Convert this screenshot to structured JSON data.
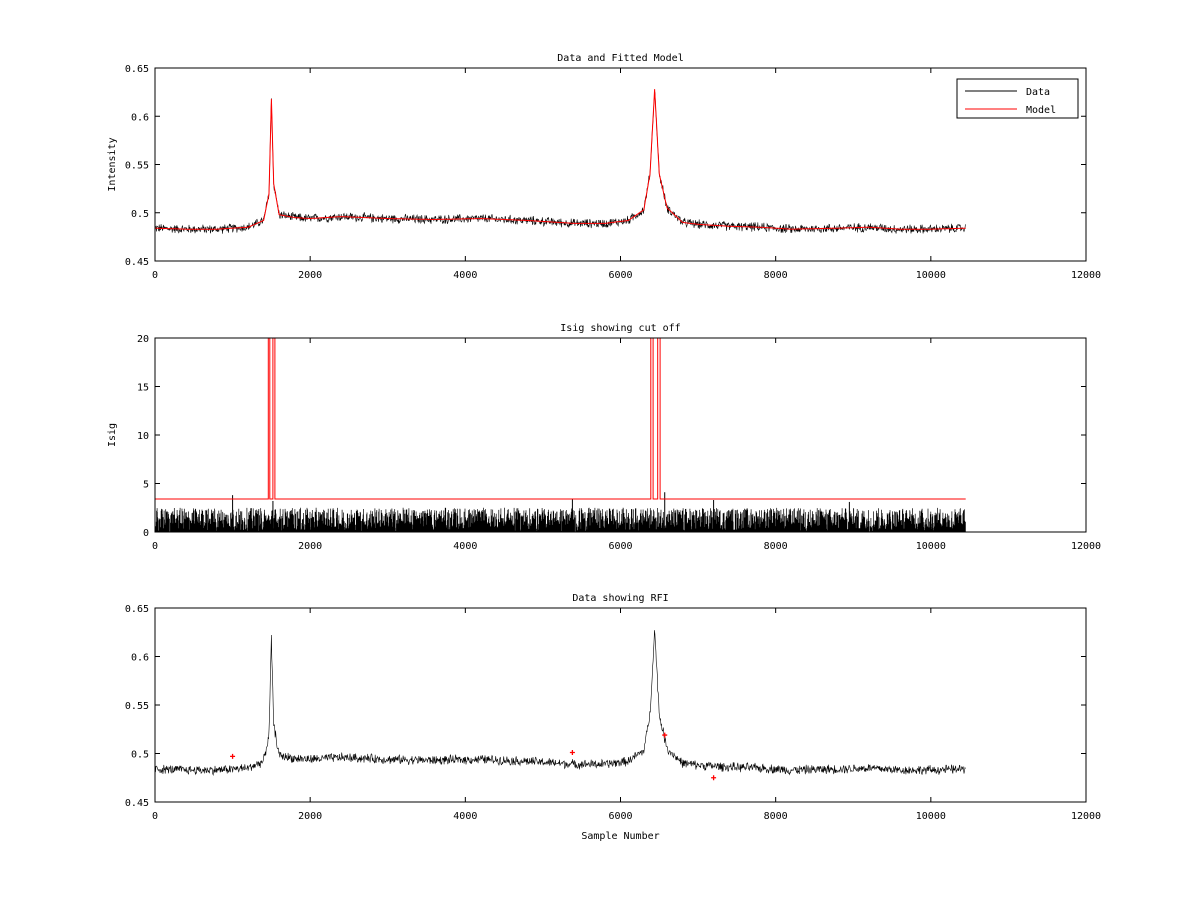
{
  "chart_data": [
    {
      "type": "line",
      "title": "Data and Fitted Model",
      "xlabel": "",
      "ylabel": "Intensity",
      "xlim": [
        0,
        12000
      ],
      "ylim": [
        0.45,
        0.65
      ],
      "xticks": [
        "0",
        "2000",
        "4000",
        "6000",
        "8000",
        "10000",
        "12000"
      ],
      "yticks": [
        "0.45",
        "0.5",
        "0.55",
        "0.6",
        "0.65"
      ],
      "grid": false,
      "legend": {
        "placement": "top-right",
        "entries": [
          "Data",
          "Model"
        ]
      },
      "series": [
        {
          "name": "Data",
          "color": "#000000",
          "style": "noisy",
          "noise_amplitude": 0.004,
          "x": [
            0,
            400,
            800,
            1200,
            1400,
            1470,
            1500,
            1530,
            1600,
            1800,
            2000,
            2400,
            3000,
            3600,
            4200,
            4800,
            5400,
            5800,
            6100,
            6300,
            6380,
            6440,
            6500,
            6600,
            6800,
            7000,
            7400,
            7800,
            8200,
            8800,
            9200,
            9600,
            10000,
            10450
          ],
          "y": [
            0.484,
            0.483,
            0.483,
            0.485,
            0.492,
            0.52,
            0.618,
            0.53,
            0.498,
            0.495,
            0.494,
            0.496,
            0.494,
            0.493,
            0.494,
            0.492,
            0.489,
            0.489,
            0.492,
            0.503,
            0.54,
            0.628,
            0.54,
            0.505,
            0.49,
            0.488,
            0.486,
            0.485,
            0.483,
            0.484,
            0.485,
            0.483,
            0.483,
            0.484
          ]
        },
        {
          "name": "Model",
          "color": "#ff0000",
          "style": "smooth",
          "x": [
            0,
            400,
            800,
            1200,
            1400,
            1470,
            1500,
            1530,
            1600,
            1800,
            2000,
            2400,
            3000,
            3600,
            4200,
            4800,
            5400,
            5800,
            6100,
            6300,
            6380,
            6440,
            6500,
            6600,
            6800,
            7000,
            7400,
            7800,
            8200,
            8800,
            9200,
            9600,
            10000,
            10450
          ],
          "y": [
            0.484,
            0.483,
            0.483,
            0.485,
            0.492,
            0.52,
            0.618,
            0.53,
            0.498,
            0.495,
            0.494,
            0.496,
            0.494,
            0.493,
            0.494,
            0.492,
            0.489,
            0.489,
            0.492,
            0.503,
            0.54,
            0.628,
            0.54,
            0.505,
            0.49,
            0.488,
            0.486,
            0.485,
            0.483,
            0.484,
            0.485,
            0.483,
            0.483,
            0.484
          ]
        }
      ]
    },
    {
      "type": "line",
      "title": "Isig showing cut off",
      "xlabel": "",
      "ylabel": "Isig",
      "xlim": [
        0,
        12000
      ],
      "ylim": [
        0,
        20
      ],
      "xticks": [
        "0",
        "2000",
        "4000",
        "6000",
        "8000",
        "10000",
        "12000"
      ],
      "yticks": [
        "0",
        "5",
        "10",
        "15",
        "20"
      ],
      "grid": false,
      "series": [
        {
          "color": "#000000",
          "style": "noise-floor",
          "x_range": [
            0,
            10450
          ],
          "typical_max": 2.5,
          "spikes": [
            [
              1000,
              3.8
            ],
            [
              1520,
              3.2
            ],
            [
              5380,
              3.4
            ],
            [
              6570,
              4.1
            ],
            [
              7200,
              3.3
            ],
            [
              8950,
              3.1
            ]
          ]
        },
        {
          "color": "#ff0000",
          "style": "step",
          "x": [
            0,
            1460,
            1460,
            1480,
            1480,
            1520,
            1520,
            1545,
            1545,
            6390,
            6390,
            6420,
            6420,
            6480,
            6480,
            6510,
            6510,
            10450
          ],
          "y": [
            3.4,
            3.4,
            20,
            20,
            3.4,
            3.4,
            20,
            20,
            3.4,
            3.4,
            20,
            20,
            3.4,
            3.4,
            20,
            20,
            3.4,
            3.4
          ]
        }
      ]
    },
    {
      "type": "line",
      "title": "Data showing RFI",
      "xlabel": "Sample Number",
      "ylabel": "",
      "xlim": [
        0,
        12000
      ],
      "ylim": [
        0.45,
        0.65
      ],
      "xticks": [
        "0",
        "2000",
        "4000",
        "6000",
        "8000",
        "10000",
        "12000"
      ],
      "yticks": [
        "0.45",
        "0.5",
        "0.55",
        "0.6",
        "0.65"
      ],
      "grid": false,
      "series": [
        {
          "color": "#000000",
          "style": "noisy",
          "noise_amplitude": 0.004,
          "x": [
            0,
            400,
            800,
            1200,
            1400,
            1470,
            1500,
            1530,
            1600,
            1800,
            2000,
            2400,
            3000,
            3600,
            4200,
            4800,
            5400,
            5800,
            6100,
            6300,
            6380,
            6440,
            6500,
            6600,
            6800,
            7000,
            7400,
            7800,
            8200,
            8800,
            9200,
            9600,
            10000,
            10450
          ],
          "y": [
            0.484,
            0.483,
            0.483,
            0.485,
            0.492,
            0.52,
            0.618,
            0.53,
            0.498,
            0.495,
            0.494,
            0.496,
            0.494,
            0.493,
            0.494,
            0.492,
            0.489,
            0.489,
            0.492,
            0.503,
            0.54,
            0.628,
            0.54,
            0.505,
            0.49,
            0.488,
            0.486,
            0.485,
            0.483,
            0.484,
            0.485,
            0.483,
            0.483,
            0.484
          ]
        },
        {
          "color": "#ff0000",
          "style": "markers",
          "x": [
            1000,
            5380,
            6570,
            7200
          ],
          "y": [
            0.497,
            0.501,
            0.519,
            0.475
          ]
        }
      ]
    }
  ]
}
